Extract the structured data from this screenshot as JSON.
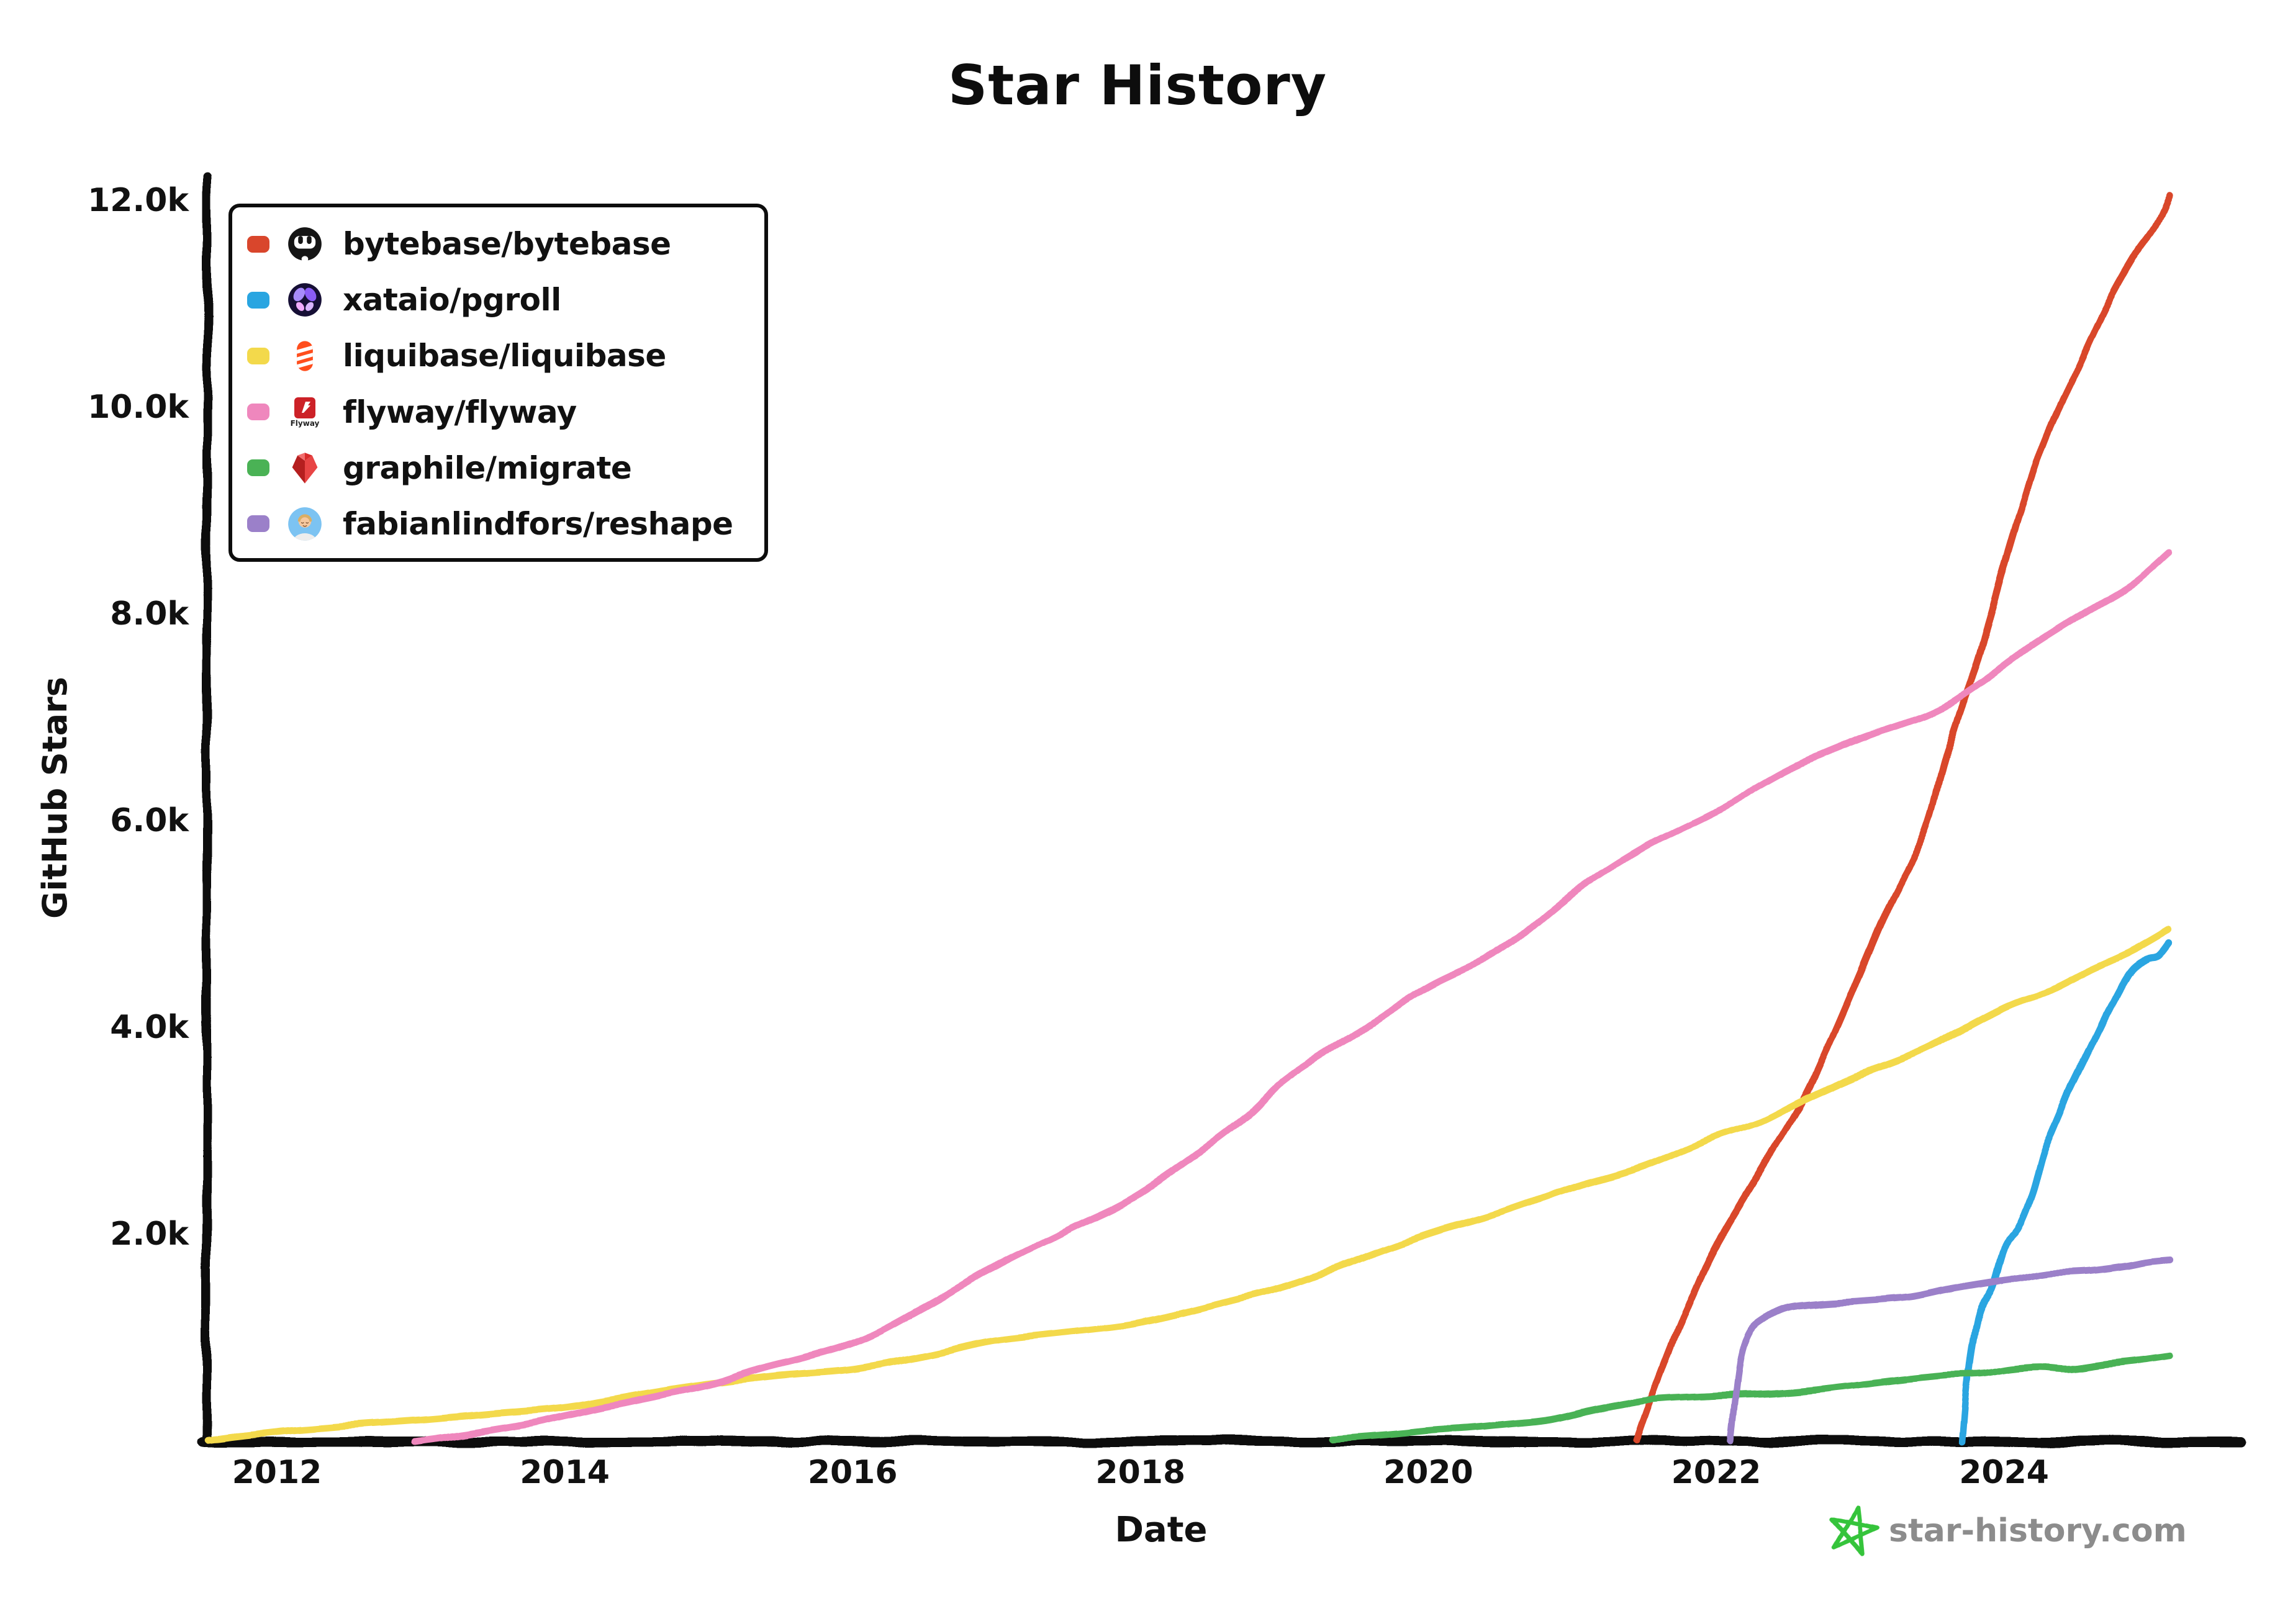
{
  "title": "Star History",
  "axes": {
    "xlabel": "Date",
    "ylabel": "GitHub Stars"
  },
  "watermark": {
    "text": "star-history.com",
    "star_icon": "star-history-star-icon",
    "star_color": "#35c43a",
    "text_color": "#8c8c8c"
  },
  "legend": {
    "position": "top-left",
    "items": [
      {
        "label": "bytebase/bytebase",
        "color": "#d9462c",
        "icon": "bytebase-logo"
      },
      {
        "label": "xataio/pgroll",
        "color": "#29a5e1",
        "icon": "xata-logo"
      },
      {
        "label": "liquibase/liquibase",
        "color": "#f3d94b",
        "icon": "liquibase-logo"
      },
      {
        "label": "flyway/flyway",
        "color": "#ef87bd",
        "icon": "flyway-logo",
        "icon_text": "Flyway"
      },
      {
        "label": "graphile/migrate",
        "color": "#4ab255",
        "icon": "graphile-logo"
      },
      {
        "label": "fabianlindfors/reshape",
        "color": "#9b80c9",
        "icon": "reshape-avatar"
      }
    ]
  },
  "chart_data": {
    "type": "line",
    "title": "Star History",
    "xlabel": "Date",
    "ylabel": "GitHub Stars",
    "x_unit": "year",
    "y_unit": "stars",
    "xlim": [
      2011.4,
      2025.6
    ],
    "ylim": [
      0,
      12400
    ],
    "grid": false,
    "legend_position": "top-left",
    "axis_color": "#0d0d0d",
    "x_ticks": [
      {
        "value": 2012,
        "label": "2012"
      },
      {
        "value": 2014,
        "label": "2014"
      },
      {
        "value": 2016,
        "label": "2016"
      },
      {
        "value": 2018,
        "label": "2018"
      },
      {
        "value": 2020,
        "label": "2020"
      },
      {
        "value": 2022,
        "label": "2022"
      },
      {
        "value": 2024,
        "label": "2024"
      }
    ],
    "y_ticks": [
      {
        "value": 2000,
        "label": "2.0k"
      },
      {
        "value": 4000,
        "label": "4.0k"
      },
      {
        "value": 6000,
        "label": "6.0k"
      },
      {
        "value": 8000,
        "label": "8.0k"
      },
      {
        "value": 10000,
        "label": "10.0k"
      },
      {
        "value": 12000,
        "label": "12.0k"
      }
    ],
    "series": [
      {
        "name": "bytebase/bytebase",
        "color": "#d9462c",
        "points": [
          [
            2021.45,
            0
          ],
          [
            2021.55,
            400
          ],
          [
            2021.7,
            950
          ],
          [
            2021.85,
            1450
          ],
          [
            2022.0,
            1900
          ],
          [
            2022.3,
            2600
          ],
          [
            2022.6,
            3300
          ],
          [
            2022.8,
            3900
          ],
          [
            2023.0,
            4550
          ],
          [
            2023.2,
            5200
          ],
          [
            2023.45,
            5900
          ],
          [
            2023.6,
            6650
          ],
          [
            2023.78,
            7400
          ],
          [
            2023.9,
            7950
          ],
          [
            2024.0,
            8450
          ],
          [
            2024.15,
            9150
          ],
          [
            2024.3,
            9750
          ],
          [
            2024.5,
            10350
          ],
          [
            2024.7,
            10950
          ],
          [
            2024.9,
            11450
          ],
          [
            2025.05,
            11750
          ],
          [
            2025.15,
            12050
          ]
        ]
      },
      {
        "name": "xataio/pgroll",
        "color": "#29a5e1",
        "points": [
          [
            2023.71,
            0
          ],
          [
            2023.74,
            500
          ],
          [
            2023.78,
            950
          ],
          [
            2023.83,
            1280
          ],
          [
            2023.92,
            1500
          ],
          [
            2024.0,
            1870
          ],
          [
            2024.1,
            2060
          ],
          [
            2024.2,
            2400
          ],
          [
            2024.28,
            2800
          ],
          [
            2024.36,
            3080
          ],
          [
            2024.45,
            3370
          ],
          [
            2024.55,
            3660
          ],
          [
            2024.64,
            3920
          ],
          [
            2024.73,
            4180
          ],
          [
            2024.82,
            4420
          ],
          [
            2024.9,
            4580
          ],
          [
            2025.0,
            4670
          ],
          [
            2025.08,
            4700
          ],
          [
            2025.15,
            4820
          ]
        ]
      },
      {
        "name": "liquibase/liquibase",
        "color": "#f3d94b",
        "points": [
          [
            2011.52,
            20
          ],
          [
            2012.0,
            100
          ],
          [
            2012.5,
            160
          ],
          [
            2013.0,
            210
          ],
          [
            2013.5,
            270
          ],
          [
            2014.0,
            330
          ],
          [
            2014.5,
            450
          ],
          [
            2015.0,
            560
          ],
          [
            2015.5,
            640
          ],
          [
            2016.0,
            700
          ],
          [
            2016.5,
            830
          ],
          [
            2017.0,
            980
          ],
          [
            2017.5,
            1060
          ],
          [
            2018.0,
            1150
          ],
          [
            2018.5,
            1320
          ],
          [
            2019.0,
            1500
          ],
          [
            2019.5,
            1750
          ],
          [
            2020.0,
            2000
          ],
          [
            2020.5,
            2210
          ],
          [
            2021.0,
            2450
          ],
          [
            2021.5,
            2660
          ],
          [
            2022.0,
            2950
          ],
          [
            2022.3,
            3090
          ],
          [
            2022.6,
            3300
          ],
          [
            2023.0,
            3550
          ],
          [
            2023.45,
            3800
          ],
          [
            2024.0,
            4200
          ],
          [
            2024.3,
            4350
          ],
          [
            2024.6,
            4560
          ],
          [
            2024.9,
            4750
          ],
          [
            2025.15,
            4950
          ]
        ]
      },
      {
        "name": "flyway/flyway",
        "color": "#ef87bd",
        "points": [
          [
            2012.95,
            0
          ],
          [
            2013.3,
            70
          ],
          [
            2013.7,
            160
          ],
          [
            2014.0,
            250
          ],
          [
            2014.5,
            400
          ],
          [
            2015.0,
            550
          ],
          [
            2015.3,
            680
          ],
          [
            2016.0,
            950
          ],
          [
            2016.5,
            1300
          ],
          [
            2017.0,
            1700
          ],
          [
            2017.5,
            2050
          ],
          [
            2018.0,
            2400
          ],
          [
            2018.7,
            3100
          ],
          [
            2019.0,
            3500
          ],
          [
            2019.5,
            3950
          ],
          [
            2020.0,
            4400
          ],
          [
            2020.5,
            4750
          ],
          [
            2021.0,
            5300
          ],
          [
            2021.5,
            5750
          ],
          [
            2022.0,
            6100
          ],
          [
            2022.5,
            6500
          ],
          [
            2023.0,
            6800
          ],
          [
            2023.5,
            7050
          ],
          [
            2023.8,
            7300
          ],
          [
            2024.2,
            7700
          ],
          [
            2024.6,
            8050
          ],
          [
            2024.9,
            8300
          ],
          [
            2025.15,
            8600
          ]
        ]
      },
      {
        "name": "graphile/migrate",
        "color": "#4ab255",
        "points": [
          [
            2019.33,
            20
          ],
          [
            2019.7,
            60
          ],
          [
            2020.0,
            100
          ],
          [
            2020.3,
            130
          ],
          [
            2020.6,
            170
          ],
          [
            2020.85,
            210
          ],
          [
            2021.1,
            290
          ],
          [
            2021.35,
            360
          ],
          [
            2021.6,
            410
          ],
          [
            2022.0,
            440
          ],
          [
            2022.4,
            465
          ],
          [
            2022.7,
            500
          ],
          [
            2023.0,
            550
          ],
          [
            2023.3,
            600
          ],
          [
            2023.6,
            640
          ],
          [
            2023.85,
            655
          ],
          [
            2024.05,
            700
          ],
          [
            2024.25,
            720
          ],
          [
            2024.45,
            705
          ],
          [
            2024.7,
            750
          ],
          [
            2024.95,
            790
          ],
          [
            2025.15,
            830
          ]
        ]
      },
      {
        "name": "fabianlindfors/reshape",
        "color": "#9b80c9",
        "points": [
          [
            2022.1,
            0
          ],
          [
            2022.13,
            400
          ],
          [
            2022.17,
            820
          ],
          [
            2022.23,
            1060
          ],
          [
            2022.32,
            1180
          ],
          [
            2022.48,
            1290
          ],
          [
            2022.7,
            1330
          ],
          [
            2023.0,
            1360
          ],
          [
            2023.35,
            1400
          ],
          [
            2023.6,
            1470
          ],
          [
            2023.9,
            1540
          ],
          [
            2024.1,
            1580
          ],
          [
            2024.3,
            1630
          ],
          [
            2024.6,
            1655
          ],
          [
            2024.85,
            1700
          ],
          [
            2025.0,
            1740
          ],
          [
            2025.15,
            1760
          ]
        ]
      }
    ]
  }
}
